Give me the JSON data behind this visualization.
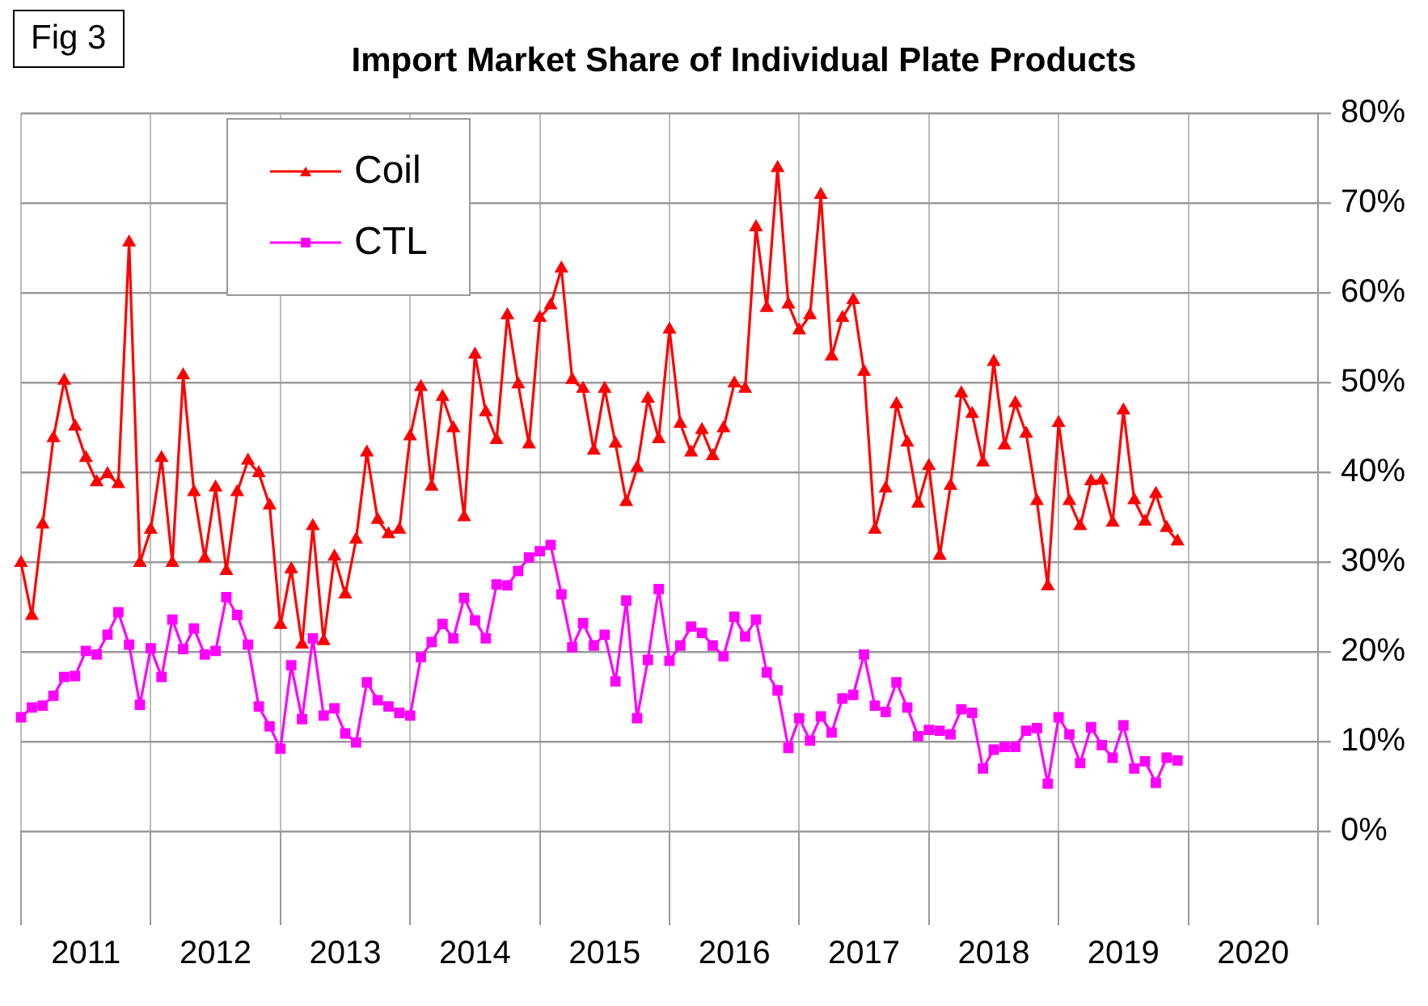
{
  "chart_data": {
    "type": "line",
    "title": "Import Market Share of Individual Plate Products",
    "annotations": [
      "Fig 3"
    ],
    "x": [
      "2011-01",
      "2011-02",
      "2011-03",
      "2011-04",
      "2011-05",
      "2011-06",
      "2011-07",
      "2011-08",
      "2011-09",
      "2011-10",
      "2011-11",
      "2011-12",
      "2012-01",
      "2012-02",
      "2012-03",
      "2012-04",
      "2012-05",
      "2012-06",
      "2012-07",
      "2012-08",
      "2012-09",
      "2012-10",
      "2012-11",
      "2012-12",
      "2013-01",
      "2013-02",
      "2013-03",
      "2013-04",
      "2013-05",
      "2013-06",
      "2013-07",
      "2013-08",
      "2013-09",
      "2013-10",
      "2013-11",
      "2013-12",
      "2014-01",
      "2014-02",
      "2014-03",
      "2014-04",
      "2014-05",
      "2014-06",
      "2014-07",
      "2014-08",
      "2014-09",
      "2014-10",
      "2014-11",
      "2014-12",
      "2015-01",
      "2015-02",
      "2015-03",
      "2015-04",
      "2015-05",
      "2015-06",
      "2015-07",
      "2015-08",
      "2015-09",
      "2015-10",
      "2015-11",
      "2015-12",
      "2016-01",
      "2016-02",
      "2016-03",
      "2016-04",
      "2016-05",
      "2016-06",
      "2016-07",
      "2016-08",
      "2016-09",
      "2016-10",
      "2016-11",
      "2016-12",
      "2017-01",
      "2017-02",
      "2017-03",
      "2017-04",
      "2017-05",
      "2017-06",
      "2017-07",
      "2017-08",
      "2017-09",
      "2017-10",
      "2017-11",
      "2017-12",
      "2018-01",
      "2018-02",
      "2018-03",
      "2018-04",
      "2018-05",
      "2018-06",
      "2018-07",
      "2018-08",
      "2018-09",
      "2018-10",
      "2018-11",
      "2018-12",
      "2019-01",
      "2019-02",
      "2019-03",
      "2019-04",
      "2019-05",
      "2019-06",
      "2019-07",
      "2019-08",
      "2019-09",
      "2019-10",
      "2019-11",
      "2019-12"
    ],
    "series": [
      {
        "name": "Coil",
        "color": "#ff0000",
        "marker": "triangle",
        "values": [
          29.9,
          24.0,
          34.2,
          43.8,
          50.2,
          45.1,
          41.6,
          38.9,
          39.8,
          38.7,
          65.6,
          29.9,
          33.6,
          41.6,
          29.9,
          50.8,
          37.8,
          30.4,
          38.3,
          29.0,
          37.8,
          41.3,
          39.9,
          36.3,
          23.0,
          29.2,
          20.8,
          34.0,
          21.2,
          30.6,
          26.4,
          32.5,
          42.2,
          34.7,
          33.1,
          33.6,
          44.0,
          49.5,
          38.4,
          48.4,
          44.9,
          35.0,
          53.1,
          46.7,
          43.6,
          57.5,
          49.8,
          43.1,
          57.2,
          58.6,
          62.7,
          50.3,
          49.3,
          42.4,
          49.3,
          43.2,
          36.7,
          40.5,
          48.2,
          43.7,
          55.9,
          45.4,
          42.2,
          44.7,
          41.8,
          44.9,
          49.9,
          49.3,
          67.3,
          58.3,
          73.9,
          58.7,
          55.8,
          57.5,
          70.9,
          52.9,
          57.2,
          59.2,
          51.2,
          33.6,
          38.2,
          47.6,
          43.3,
          36.5,
          40.7,
          30.7,
          38.5,
          48.8,
          46.5,
          41.1,
          52.3,
          43.0,
          47.7,
          44.3,
          36.8,
          27.3,
          45.5,
          36.8,
          34.0,
          39.0,
          39.1,
          34.4,
          46.9,
          36.9,
          34.5,
          37.6,
          33.8,
          32.3
        ]
      },
      {
        "name": "CTL",
        "color": "#ff00ff",
        "marker": "square",
        "values": [
          12.7,
          13.8,
          14.0,
          15.1,
          17.2,
          17.3,
          20.1,
          19.7,
          21.9,
          24.4,
          20.8,
          14.1,
          20.4,
          17.2,
          23.6,
          20.3,
          22.6,
          19.7,
          20.1,
          26.1,
          24.1,
          20.8,
          13.9,
          11.7,
          9.2,
          18.5,
          12.5,
          21.5,
          12.9,
          13.7,
          10.9,
          9.9,
          16.6,
          14.6,
          13.9,
          13.2,
          12.9,
          19.4,
          21.1,
          23.1,
          21.5,
          26.0,
          23.5,
          21.5,
          27.5,
          27.4,
          29.0,
          30.5,
          31.2,
          31.9,
          26.4,
          20.5,
          23.2,
          20.7,
          21.9,
          16.7,
          25.7,
          12.6,
          19.1,
          27.0,
          19.0,
          20.7,
          22.8,
          22.1,
          20.7,
          19.5,
          23.9,
          21.7,
          23.6,
          17.7,
          15.7,
          9.3,
          12.6,
          10.1,
          12.8,
          11.0,
          14.8,
          15.2,
          19.7,
          14.0,
          13.3,
          16.6,
          13.8,
          10.6,
          11.3,
          11.2,
          10.8,
          13.6,
          13.2,
          7.0,
          9.1,
          9.4,
          9.4,
          11.2,
          11.5,
          5.3,
          12.7,
          10.8,
          7.6,
          11.6,
          9.6,
          8.2,
          11.8,
          7.0,
          7.8,
          5.4,
          8.2,
          7.9
        ]
      }
    ],
    "xlim": [
      "2011-01-01",
      "2021-01-01"
    ],
    "xticks": [
      {
        "value": "2011-01-01",
        "label": null
      },
      {
        "value": "2011-07-01",
        "label": "2011"
      },
      {
        "value": "2012-01-01",
        "label": null
      },
      {
        "value": "2012-07-01",
        "label": "2012"
      },
      {
        "value": "2013-01-01",
        "label": null
      },
      {
        "value": "2013-07-01",
        "label": "2013"
      },
      {
        "value": "2014-01-01",
        "label": null
      },
      {
        "value": "2014-07-01",
        "label": "2014"
      },
      {
        "value": "2015-01-01",
        "label": null
      },
      {
        "value": "2015-07-01",
        "label": "2015"
      },
      {
        "value": "2016-01-01",
        "label": null
      },
      {
        "value": "2016-07-01",
        "label": "2016"
      },
      {
        "value": "2017-01-01",
        "label": null
      },
      {
        "value": "2017-07-01",
        "label": "2017"
      },
      {
        "value": "2018-01-01",
        "label": null
      },
      {
        "value": "2018-07-01",
        "label": "2018"
      },
      {
        "value": "2019-01-01",
        "label": null
      },
      {
        "value": "2019-07-01",
        "label": "2019"
      },
      {
        "value": "2020-01-01",
        "label": null
      },
      {
        "value": "2020-07-01",
        "label": "2020"
      },
      {
        "value": "2021-01-01",
        "label": null
      }
    ],
    "ylim": [
      0,
      80
    ],
    "yticks": [
      {
        "value": 0,
        "label": "0%"
      },
      {
        "value": 10,
        "label": "10%"
      },
      {
        "value": 20,
        "label": "20%"
      },
      {
        "value": 30,
        "label": "30%"
      },
      {
        "value": 40,
        "label": "40%"
      },
      {
        "value": 50,
        "label": "50%"
      },
      {
        "value": 60,
        "label": "60%"
      },
      {
        "value": 70,
        "label": "70%"
      },
      {
        "value": 80,
        "label": "80%"
      }
    ],
    "grid": true,
    "legend": "top left",
    "line_style": "solid"
  }
}
